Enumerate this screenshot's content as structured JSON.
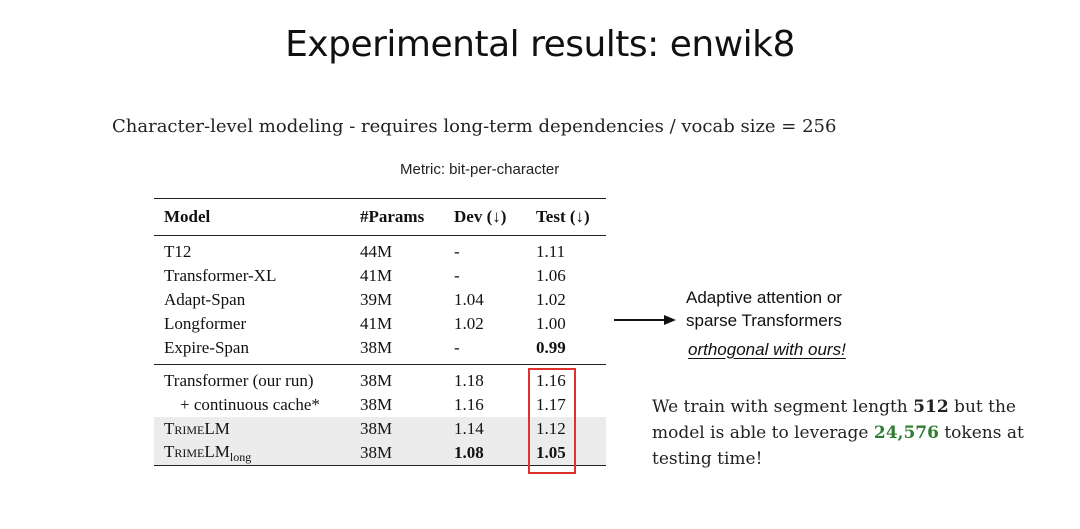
{
  "slide": {
    "title": "Experimental results:  enwik8",
    "subtitle": "Character-level modeling - requires long-term dependencies / vocab size = 256",
    "metric": "Metric: bit-per-character"
  },
  "table": {
    "headers": [
      "Model",
      "#Params",
      "Dev (↓)",
      "Test (↓)"
    ],
    "rows": [
      {
        "model": "T12",
        "params": "44M",
        "dev": "-",
        "test": "1.11"
      },
      {
        "model": "Transformer-XL",
        "params": "41M",
        "dev": "-",
        "test": "1.06"
      },
      {
        "model": "Adapt-Span",
        "params": "39M",
        "dev": "1.04",
        "test": "1.02"
      },
      {
        "model": "Longformer",
        "params": "41M",
        "dev": "1.02",
        "test": "1.00"
      },
      {
        "model": "Expire-Span",
        "params": "38M",
        "dev": "-",
        "test": "0.99"
      },
      {
        "model": "Transformer (our run)",
        "params": "38M",
        "dev": "1.18",
        "test": "1.16"
      },
      {
        "model": "+ continuous cache*",
        "params": "38M",
        "dev": "1.16",
        "test": "1.17"
      },
      {
        "model": "TrimeLM",
        "params": "38M",
        "dev": "1.14",
        "test": "1.12"
      },
      {
        "model": "TrimeLM",
        "model_sub": "long",
        "params": "38M",
        "dev": "1.08",
        "test": "1.05"
      }
    ]
  },
  "annotation": {
    "line1": "Adaptive attention or",
    "line2": "sparse Transformers",
    "emphasis": "orthogonal with ours!"
  },
  "train_note": {
    "part1": "We train with segment length ",
    "segment_length": "512",
    "part2": " but the model is able to leverage ",
    "tokens": "24,576",
    "part3": " tokens at testing time!"
  },
  "colors": {
    "highlight_box": "#e0322c",
    "accent_green": "#2e7d32",
    "shaded_row": "#ececec"
  }
}
